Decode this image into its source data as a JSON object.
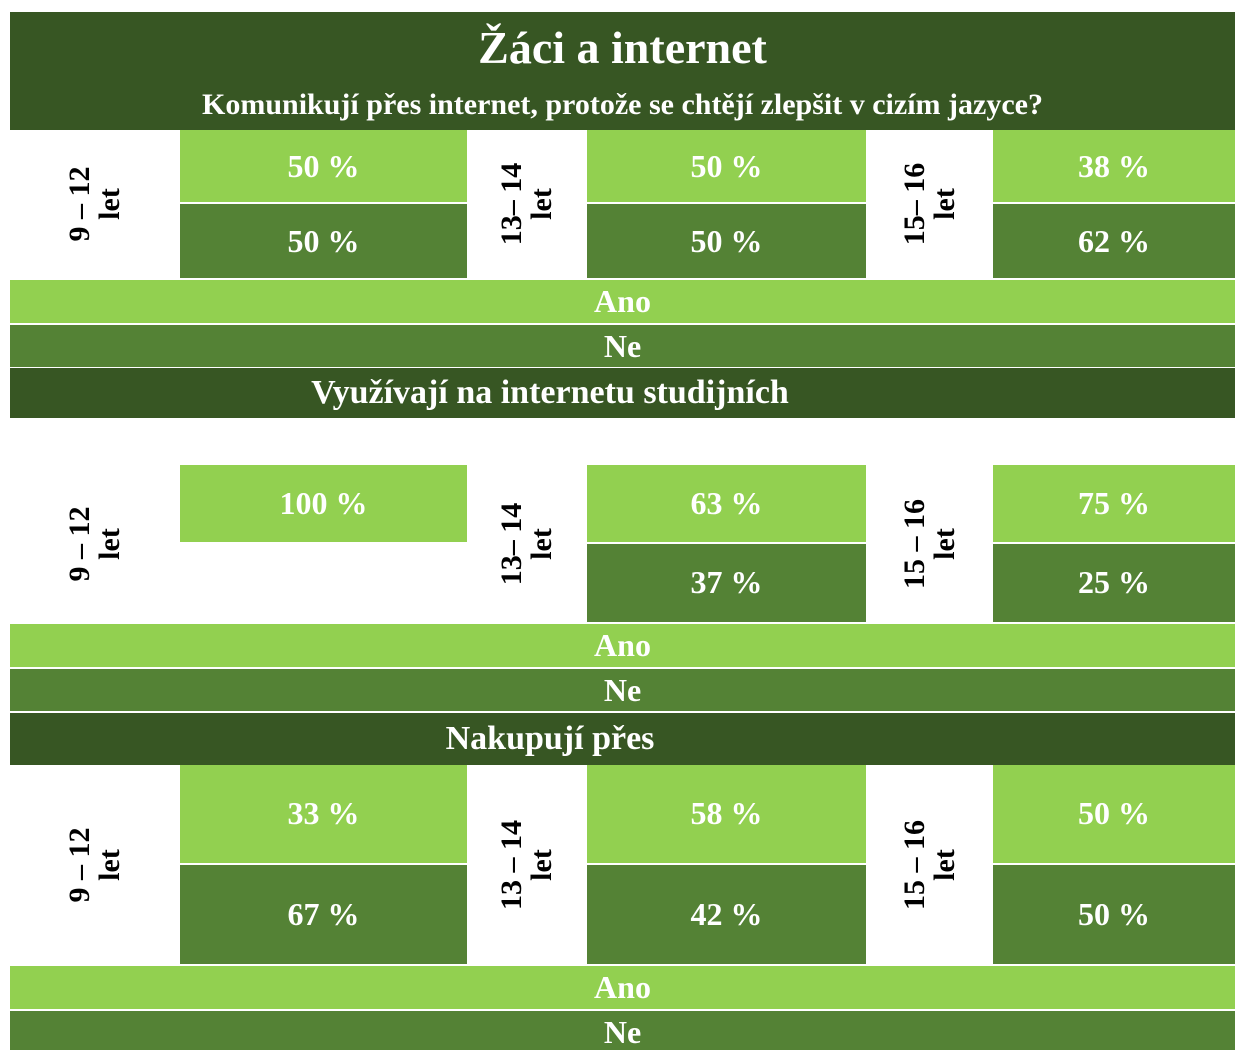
{
  "header": {
    "title": "Žáci a internet"
  },
  "sections": [
    {
      "heading": "Komunikují přes internet, protože se chtějí zlepšit v cizím jazyce?",
      "groups": [
        {
          "label": "9 – 12 let",
          "ano": "50 %",
          "ne": "50 %"
        },
        {
          "label": "13– 14 let",
          "ano": "50 %",
          "ne": "50 %"
        },
        {
          "label": "15– 16 let",
          "ano": "38 %",
          "ne": "62 %"
        }
      ],
      "legend": {
        "ano": "Ano",
        "ne": "Ne"
      }
    },
    {
      "heading": "Využívají na internetu studijních",
      "groups": [
        {
          "label": "9 – 12 let",
          "ano": "100 %"
        },
        {
          "label": "13– 14 let",
          "ano": "63 %",
          "ne": "37 %"
        },
        {
          "label": "15 – 16 let",
          "ano": "75 %",
          "ne": "25 %"
        }
      ],
      "legend": {
        "ano": "Ano",
        "ne": "Ne"
      }
    },
    {
      "heading": "Nakupují přes",
      "groups": [
        {
          "label": "9 – 12 let",
          "ano": "33 %",
          "ne": "67 %"
        },
        {
          "label": "13 – 14 let",
          "ano": "58 %",
          "ne": "42 %"
        },
        {
          "label": "15 – 16 let",
          "ano": "50 %",
          "ne": "50 %"
        }
      ],
      "legend": {
        "ano": "Ano",
        "ne": "Ne"
      }
    }
  ]
}
